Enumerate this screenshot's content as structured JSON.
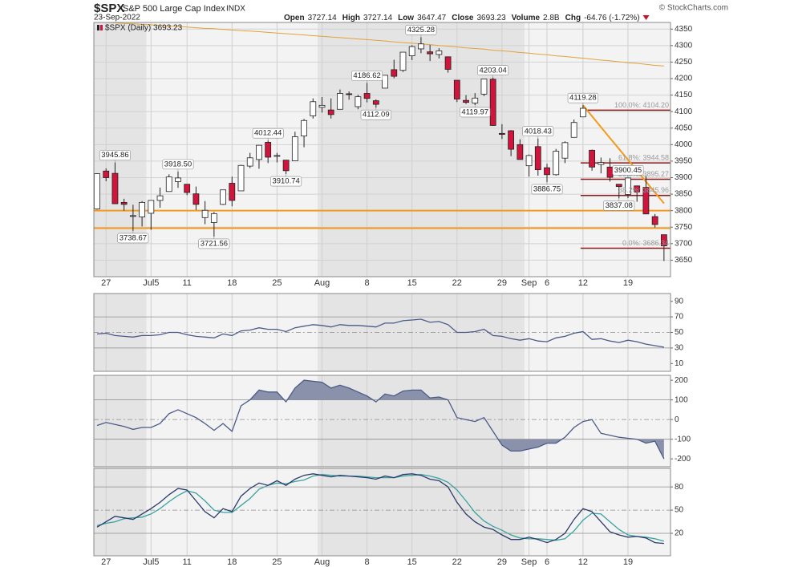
{
  "header": {
    "symbol": "$SPX",
    "name": "S&P 500 Large Cap Index",
    "exchange": "INDX",
    "date": "23-Sep-2022",
    "stats": [
      {
        "name": "Open",
        "value": "3727.14"
      },
      {
        "name": "High",
        "value": "3727.14"
      },
      {
        "name": "Low",
        "value": "3647.47"
      },
      {
        "name": "Close",
        "value": "3693.23"
      },
      {
        "name": "Volume",
        "value": "2.8B"
      },
      {
        "name": "Chg",
        "value": "-64.76 (-1.72%)"
      }
    ],
    "source": "© StockCharts.com"
  },
  "chart_data": [
    {
      "type": "candlestick",
      "legend": "$SPX (Daily) 3693.23",
      "categories": [
        null,
        "27",
        null,
        null,
        null,
        null,
        "Jul5",
        null,
        null,
        null,
        "11",
        null,
        null,
        null,
        null,
        "18",
        null,
        null,
        null,
        null,
        "25",
        null,
        null,
        null,
        null,
        "Aug",
        null,
        null,
        null,
        null,
        "8",
        null,
        null,
        null,
        null,
        "15",
        null,
        null,
        null,
        null,
        "22",
        null,
        null,
        null,
        null,
        "29",
        null,
        null,
        "Sep",
        null,
        "6",
        null,
        null,
        null,
        "12",
        null,
        null,
        null,
        null,
        "19",
        null,
        null,
        null,
        null
      ],
      "open": [
        3805,
        3920,
        3913,
        3825,
        3785,
        3781,
        3792,
        3831,
        3858,
        3888,
        3880,
        3851,
        3779,
        3764,
        3819,
        3883,
        3860,
        3935,
        3955,
        4007,
        3965,
        3953,
        3951,
        4026,
        4087,
        4113,
        4105,
        4107,
        4154,
        4115,
        4155,
        4133,
        4171,
        4227,
        4225,
        4269,
        4290,
        4281,
        4273,
        4266,
        4195,
        4134,
        4126,
        4153,
        4198,
        4034,
        4042,
        4000,
        3936,
        3994,
        3930,
        3909,
        3959,
        4022,
        4084,
        3983,
        3940,
        3932,
        3880,
        3849,
        3875,
        3871,
        3782,
        3727.14
      ],
      "high": [
        3913,
        3928,
        3945.86,
        3836,
        3818,
        3829,
        3832,
        3870,
        3910,
        3918.5,
        3880,
        3873,
        3829,
        3796,
        3863,
        3903,
        3939,
        3975,
        3999,
        4012.44,
        3975,
        3953,
        4039,
        4078,
        4140,
        4144,
        4140,
        4167,
        4161,
        4151,
        4186.62,
        4137,
        4211,
        4257,
        4280,
        4301,
        4325.28,
        4302,
        4292,
        4267,
        4195,
        4150,
        4156,
        4200,
        4203.04,
        4062,
        4044,
        4016,
        3970,
        4018.43,
        3942,
        3987,
        4010,
        4076,
        4119.28,
        3985,
        3961,
        3959,
        3880,
        3900.45,
        3876,
        3907,
        3790,
        3727.14
      ],
      "low": [
        3803,
        3889,
        3820,
        3800,
        3738.67,
        3752,
        3742,
        3809,
        3858,
        3869,
        3847,
        3802,
        3759,
        3721.56,
        3817,
        3813,
        3860,
        3929,
        3927,
        3944,
        3946,
        3910.74,
        3951,
        3992,
        4079,
        4097,
        4079,
        4107,
        4136,
        4107,
        4128,
        4112.09,
        4170,
        4201,
        4220,
        4256,
        4277,
        4253,
        4261,
        4218,
        4129,
        4123,
        4119.97,
        4147,
        4057,
        4017,
        3965,
        3954,
        3903,
        3906,
        3886.75,
        3906,
        3944,
        4022,
        4083,
        3921,
        3913,
        3888,
        3837.08,
        3838,
        3827,
        3789,
        3749,
        3647.47
      ],
      "close": [
        3912,
        3900,
        3821,
        3819,
        3785,
        3825,
        3831,
        3845,
        3902,
        3899,
        3855,
        3819,
        3801,
        3791,
        3863,
        3831,
        3937,
        3960,
        3998,
        3962,
        3967,
        3921,
        4024,
        4073,
        4130,
        4119,
        4091,
        4155,
        4152,
        4145,
        4140,
        4122,
        4210,
        4207,
        4280,
        4297,
        4305,
        4275,
        4284,
        4228,
        4138,
        4128,
        4141,
        4199,
        4058,
        4031,
        3986,
        3955,
        3967,
        3924,
        3909,
        3980,
        4006,
        4067,
        4110,
        3932,
        3946,
        3901,
        3873,
        3899,
        3856,
        3790,
        3758,
        3693.23
      ],
      "high_labels": [
        null,
        null,
        "3945.86",
        null,
        null,
        null,
        null,
        null,
        null,
        "3918.50",
        null,
        null,
        null,
        null,
        null,
        null,
        null,
        null,
        null,
        "4012.44",
        null,
        null,
        null,
        null,
        null,
        null,
        null,
        null,
        null,
        null,
        "4186.62",
        null,
        null,
        null,
        null,
        null,
        "4325.28",
        null,
        null,
        null,
        null,
        null,
        null,
        null,
        "4203.04",
        null,
        null,
        null,
        null,
        "4018.43",
        null,
        null,
        null,
        null,
        "4119.28",
        null,
        null,
        null,
        null,
        "3900.45",
        null,
        null,
        null,
        null
      ],
      "low_labels": [
        null,
        null,
        null,
        null,
        "3738.67",
        null,
        null,
        null,
        null,
        null,
        null,
        null,
        null,
        "3721.56",
        null,
        null,
        null,
        null,
        null,
        null,
        null,
        "3910.74",
        null,
        null,
        null,
        null,
        null,
        null,
        null,
        null,
        null,
        "4112.09",
        null,
        null,
        null,
        null,
        null,
        null,
        null,
        null,
        null,
        null,
        "4119.97",
        null,
        null,
        null,
        null,
        null,
        null,
        null,
        "3886.75",
        null,
        null,
        null,
        null,
        null,
        null,
        null,
        "3837.08",
        null,
        null,
        null,
        null,
        null
      ],
      "moving_average": {
        "color": "#e3a23a",
        "values": [
          4372,
          4370,
          4369,
          4367,
          4366,
          4364,
          4363,
          4361,
          4359,
          4358,
          4356,
          4354,
          4352,
          4351,
          4349,
          4347,
          4345,
          4344,
          4342,
          4340,
          4338,
          4336,
          4334,
          4332,
          4330,
          4328,
          4326,
          4324,
          4322,
          4320,
          4318,
          4316,
          4314,
          4311,
          4309,
          4307,
          4305,
          4303,
          4300,
          4298,
          4296,
          4293,
          4291,
          4289,
          4286,
          4284,
          4282,
          4279,
          4277,
          4274,
          4272,
          4269,
          4267,
          4264,
          4262,
          4259,
          4256,
          4254,
          4251,
          4248,
          4246,
          4243,
          4240,
          4238
        ]
      },
      "trendline": {
        "color": "#f39a1e",
        "values": [
          null,
          null,
          null,
          null,
          null,
          null,
          null,
          null,
          null,
          null,
          null,
          null,
          null,
          null,
          null,
          null,
          null,
          null,
          null,
          null,
          null,
          null,
          null,
          null,
          null,
          null,
          null,
          null,
          null,
          null,
          null,
          null,
          null,
          null,
          null,
          null,
          null,
          null,
          null,
          null,
          null,
          null,
          null,
          null,
          null,
          null,
          null,
          null,
          null,
          null,
          null,
          null,
          null,
          null,
          4119.28,
          4086,
          4053,
          4020,
          3987,
          3954,
          3921,
          3888,
          3855,
          3822
        ]
      },
      "support_lines": {
        "color": "#f39a1e",
        "values": [
          3800,
          3747
        ]
      },
      "fib_levels": {
        "color": "#8b1c1c",
        "levels": [
          {
            "value": 4104.2,
            "label": "100.0%: 4104.20"
          },
          {
            "value": 3944.58,
            "label": "61.8%: 3944.58"
          },
          {
            "value": 3895.27,
            "label": "50.0%: 3895.27"
          },
          {
            "value": 3845.96,
            "label": "38.2%: 3845.96"
          },
          {
            "value": 3686.34,
            "label": "0.0%: 3686.34"
          }
        ]
      },
      "up_color": "#ffffff",
      "down_color": "#d0143c",
      "ylim": [
        3600,
        4370
      ],
      "yticks": [
        3650,
        3700,
        3750,
        3800,
        3850,
        3900,
        3950,
        4000,
        4050,
        4100,
        4150,
        4200,
        4250,
        4300,
        4350
      ],
      "grid": true
    },
    {
      "type": "line",
      "ylim": [
        0,
        100
      ],
      "yticks": [
        90,
        70,
        50,
        30,
        10
      ],
      "levels": [
        70,
        50,
        30
      ],
      "series": [
        {
          "color": "#4b5b88",
          "values": [
            48,
            49,
            46,
            45,
            44,
            46,
            46,
            47,
            50,
            50,
            47,
            45,
            44,
            43,
            48,
            46,
            52,
            53,
            56,
            54,
            54,
            51,
            56,
            58,
            60,
            59,
            57,
            60,
            59,
            59,
            58,
            57,
            62,
            62,
            65,
            66,
            67,
            63,
            64,
            60,
            50,
            50,
            51,
            54,
            46,
            45,
            42,
            40,
            42,
            39,
            38,
            43,
            45,
            49,
            51,
            41,
            42,
            39,
            37,
            40,
            38,
            35,
            33,
            31
          ]
        }
      ]
    },
    {
      "type": "line",
      "ylim": [
        -240,
        225
      ],
      "yticks": [
        200,
        100,
        0,
        -100,
        -200
      ],
      "levels": [
        100,
        0,
        -100
      ],
      "fill_color": "#8a92ab",
      "series": [
        {
          "color": "#4b5b88",
          "values": [
            -30,
            -15,
            -25,
            -35,
            -50,
            -40,
            -40,
            -20,
            30,
            50,
            30,
            10,
            -20,
            -55,
            -20,
            -60,
            70,
            100,
            150,
            140,
            140,
            90,
            160,
            200,
            195,
            190,
            160,
            175,
            160,
            140,
            120,
            90,
            130,
            120,
            145,
            150,
            150,
            110,
            115,
            100,
            10,
            0,
            -10,
            10,
            -60,
            -130,
            -160,
            -160,
            -150,
            -140,
            -120,
            -120,
            -90,
            -40,
            -10,
            0,
            -70,
            -80,
            -90,
            -95,
            -100,
            -120,
            -110,
            -200
          ]
        }
      ]
    },
    {
      "type": "line",
      "ylim": [
        -9,
        104
      ],
      "yticks": [
        80,
        50,
        20
      ],
      "levels": [
        80,
        50,
        20
      ],
      "categories": [
        null,
        "27",
        null,
        null,
        null,
        null,
        "Jul5",
        null,
        null,
        null,
        "11",
        null,
        null,
        null,
        null,
        "18",
        null,
        null,
        null,
        null,
        "25",
        null,
        null,
        null,
        null,
        "Aug",
        null,
        null,
        null,
        null,
        "8",
        null,
        null,
        null,
        null,
        "15",
        null,
        null,
        null,
        null,
        "22",
        null,
        null,
        null,
        null,
        "29",
        null,
        null,
        "Sep",
        null,
        "6",
        null,
        null,
        null,
        "12",
        null,
        null,
        null,
        null,
        "19",
        null,
        null,
        null,
        null
      ],
      "series": [
        {
          "color": "#2b3a6b",
          "values": [
            28,
            35,
            42,
            40,
            38,
            45,
            52,
            60,
            70,
            78,
            76,
            62,
            48,
            40,
            52,
            48,
            68,
            78,
            85,
            82,
            88,
            82,
            90,
            95,
            97,
            95,
            93,
            95,
            94,
            93,
            92,
            90,
            94,
            92,
            96,
            97,
            95,
            90,
            88,
            80,
            60,
            45,
            35,
            28,
            25,
            18,
            12,
            12,
            15,
            12,
            8,
            12,
            20,
            38,
            52,
            48,
            35,
            22,
            18,
            15,
            16,
            14,
            8,
            7
          ]
        },
        {
          "color": "#3aa3a0",
          "values": [
            30,
            33,
            35,
            39,
            40,
            41,
            45,
            52,
            61,
            69,
            75,
            72,
            62,
            50,
            47,
            47,
            56,
            65,
            77,
            82,
            85,
            84,
            87,
            89,
            94,
            96,
            95,
            94,
            94,
            94,
            93,
            92,
            92,
            92,
            94,
            95,
            96,
            94,
            91,
            86,
            76,
            62,
            47,
            36,
            29,
            24,
            18,
            14,
            13,
            13,
            12,
            11,
            13,
            23,
            37,
            46,
            45,
            35,
            25,
            18,
            16,
            15,
            13,
            10
          ]
        }
      ]
    }
  ]
}
